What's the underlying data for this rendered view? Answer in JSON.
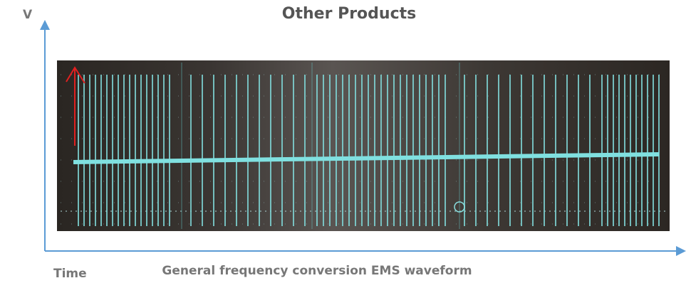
{
  "axis_labels": {
    "y": "V",
    "x": "Time"
  },
  "title": "Other Products",
  "caption": "General frequency conversion EMS waveform"
}
